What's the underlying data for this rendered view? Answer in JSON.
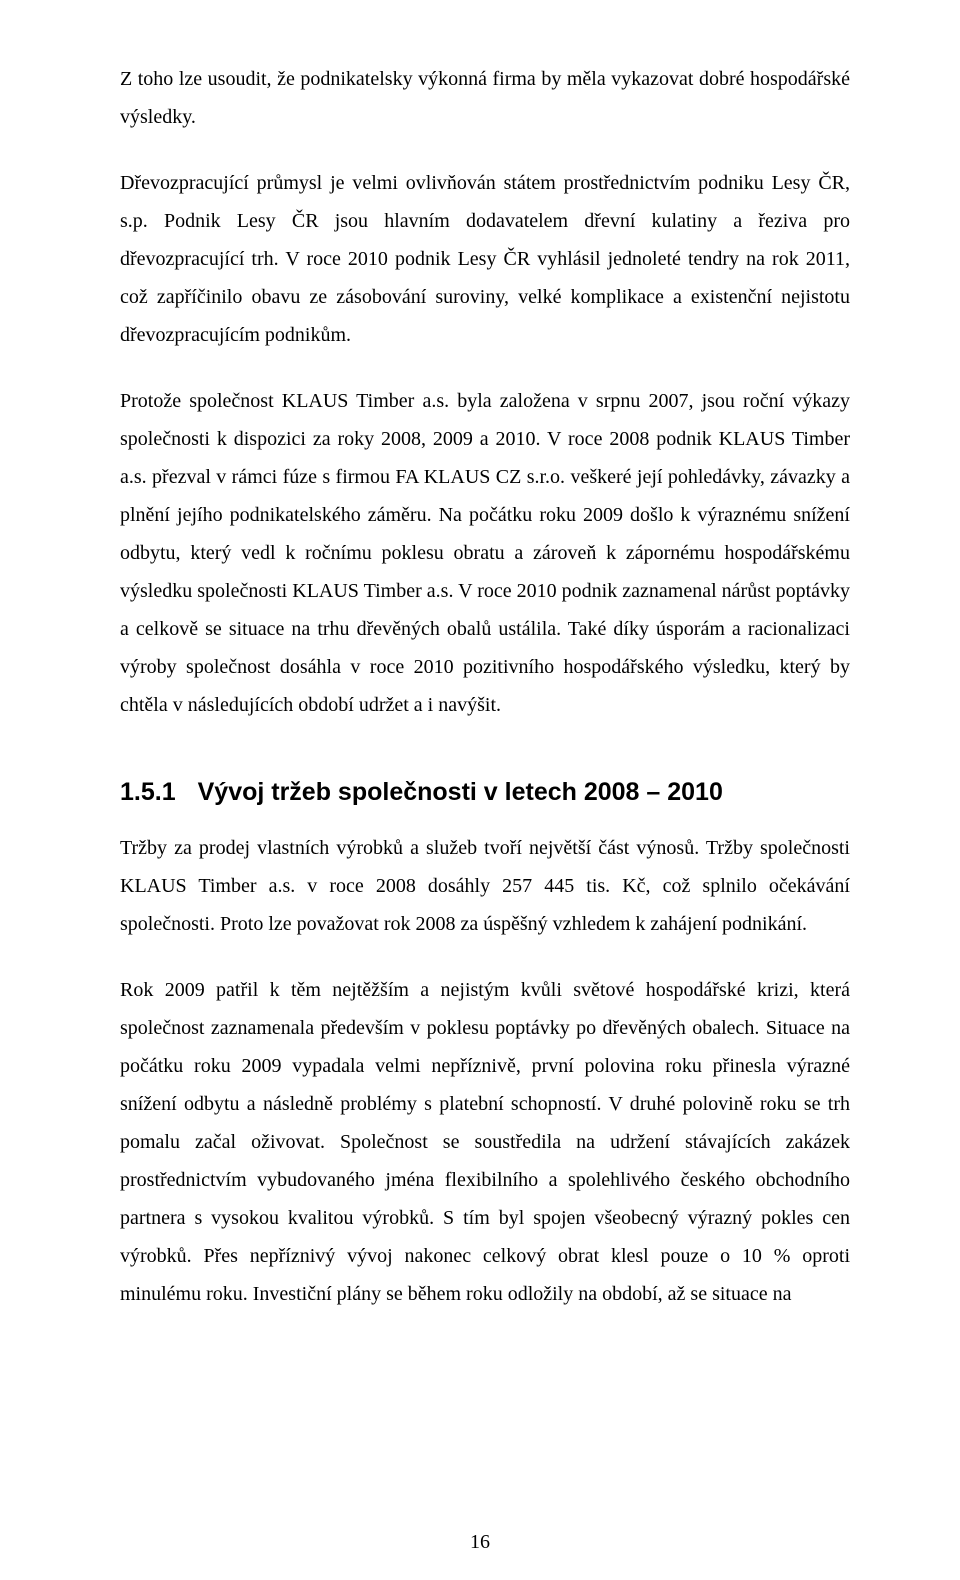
{
  "paragraphs": {
    "p1": "Z toho lze usoudit, že podnikatelsky výkonná firma by měla vykazovat dobré hospodářské výsledky.",
    "p2": "Dřevozpracující průmysl je velmi ovlivňován státem prostřednictvím podniku Lesy ČR, s.p. Podnik Lesy ČR jsou hlavním dodavatelem dřevní kulatiny a řeziva pro dřevozpracující trh. V roce 2010 podnik Lesy ČR vyhlásil jednoleté tendry na rok 2011, což zapříčinilo obavu ze zásobování suroviny, velké komplikace a existenční nejistotu dřevozpracujícím podnikům.",
    "p3": "Protože společnost KLAUS Timber a.s. byla založena v srpnu 2007, jsou roční výkazy společnosti k dispozici za roky 2008, 2009 a 2010. V roce 2008 podnik KLAUS Timber a.s. přezval v rámci fúze s firmou FA KLAUS CZ s.r.o. veškeré její pohledávky, závazky a plnění jejího podnikatelského záměru. Na počátku roku 2009 došlo k výraznému snížení odbytu, který vedl k ročnímu poklesu obratu a zároveň k zápornému hospodářskému výsledku společnosti KLAUS Timber a.s. V roce 2010 podnik zaznamenal nárůst poptávky a celkově se situace na trhu dřevěných obalů ustálila. Také díky úsporám a racionalizaci výroby společnost dosáhla v roce 2010 pozitivního hospodářského výsledku, který by chtěla v následujících období udržet a i navýšit.",
    "p4": "Tržby za prodej vlastních výrobků a služeb tvoří největší část výnosů. Tržby společnosti KLAUS Timber a.s. v roce 2008 dosáhly 257 445 tis. Kč, což splnilo očekávání společnosti. Proto lze považovat rok 2008 za úspěšný vzhledem k zahájení podnikání.",
    "p5": "Rok 2009 patřil k těm nejtěžším a nejistým kvůli světové hospodářské krizi, která společnost zaznamenala především v poklesu poptávky po dřevěných obalech. Situace na počátku roku 2009 vypadala velmi nepříznivě, první polovina roku přinesla výrazné snížení odbytu a následně problémy s platební schopností. V druhé polovině roku se trh pomalu začal oživovat. Společnost se soustředila na udržení stávajících zakázek prostřednictvím vybudovaného jména flexibilního a spolehlivého českého obchodního partnera s vysokou kvalitou výrobků. S tím byl spojen všeobecný výrazný pokles cen výrobků. Přes nepříznivý vývoj nakonec celkový obrat klesl pouze o 10 % oproti minulému roku. Investiční plány se během roku odložily na období, až se situace na"
  },
  "heading": {
    "number": "1.5.1",
    "title": "Vývoj tržeb společnosti v letech 2008 – 2010"
  },
  "page_number": "16"
}
